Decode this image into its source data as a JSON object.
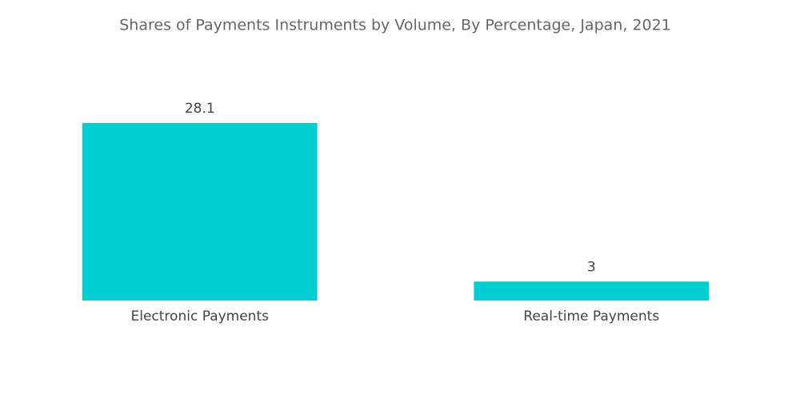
{
  "chart_data": {
    "type": "bar",
    "title": "Shares of Payments Instruments by Volume, By Percentage, Japan, 2021",
    "categories": [
      "Electronic Payments",
      "Real-time Payments"
    ],
    "values": [
      28.1,
      3
    ],
    "color": "#00ced1"
  }
}
